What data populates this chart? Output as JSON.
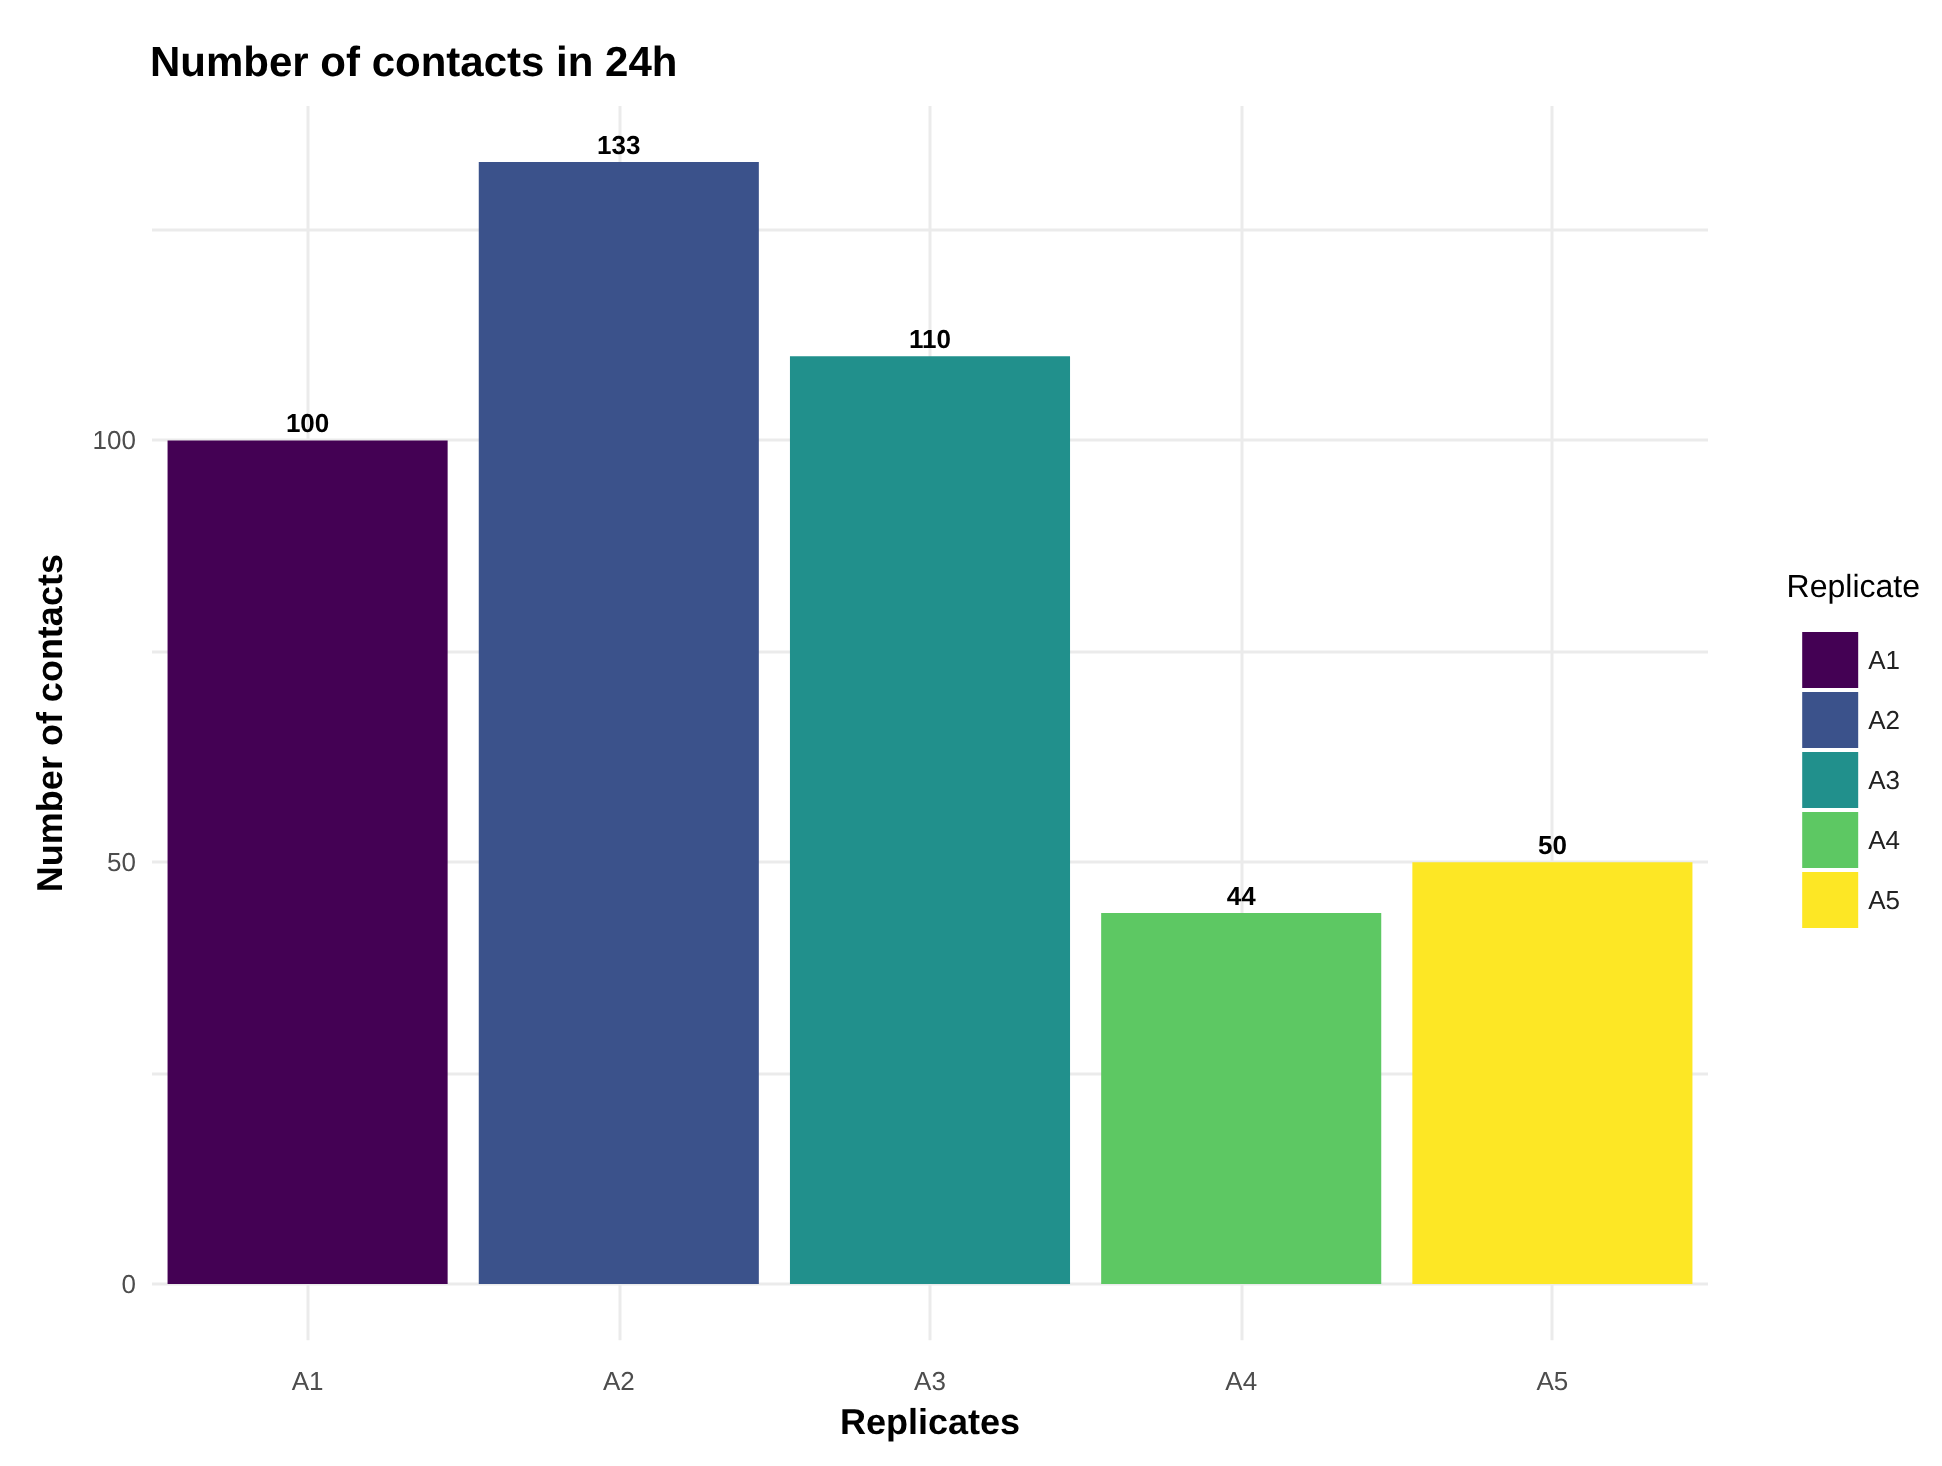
{
  "chart_data": {
    "type": "bar",
    "title": "Number of contacts in 24h",
    "xlabel": "Replicates",
    "ylabel": "Number of contacts",
    "legend_title": "Replicate",
    "categories": [
      "A1",
      "A2",
      "A3",
      "A4",
      "A5"
    ],
    "series": [
      {
        "name": "A1",
        "color": "#440154",
        "values": [
          100,
          null,
          null,
          null,
          null
        ]
      },
      {
        "name": "A2",
        "color": "#3b528b",
        "values": [
          null,
          133,
          null,
          null,
          null
        ]
      },
      {
        "name": "A3",
        "color": "#21908c",
        "values": [
          null,
          null,
          110,
          null,
          null
        ]
      },
      {
        "name": "A4",
        "color": "#5dc863",
        "values": [
          null,
          null,
          null,
          44,
          null
        ]
      },
      {
        "name": "A5",
        "color": "#fde725",
        "values": [
          null,
          null,
          null,
          null,
          50
        ]
      }
    ],
    "ylim": [
      -6.65,
      139.65
    ],
    "yticks": [
      0,
      {
        "value": 25,
        "label": null
      },
      50,
      {
        "value": 75,
        "label": null
      },
      100,
      {
        "value": 125,
        "label": null
      }
    ],
    "grid": true,
    "legend": "right",
    "data_labels": true
  }
}
